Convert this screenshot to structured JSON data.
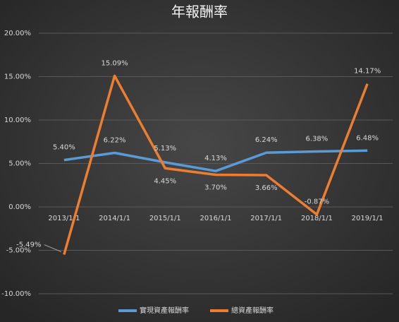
{
  "chart_data": {
    "type": "line",
    "title": "年報酬率",
    "categories": [
      "2013/1/1",
      "2014/1/1",
      "2015/1/1",
      "2016/1/1",
      "2017/1/1",
      "2018/1/1",
      "2019/1/1"
    ],
    "series": [
      {
        "name": "實現資產報酬率",
        "color": "#5b9bd5",
        "values": [
          5.4,
          6.22,
          5.13,
          4.13,
          6.24,
          6.38,
          6.48
        ],
        "value_labels": [
          "5.40%",
          "6.22%",
          "5.13%",
          "4.13%",
          "6.24%",
          "6.38%",
          "6.48%"
        ]
      },
      {
        "name": "總資產報酬率",
        "color": "#ed7d31",
        "values": [
          -5.49,
          15.09,
          4.45,
          3.7,
          3.66,
          -0.87,
          14.17
        ],
        "value_labels": [
          "-5.49%",
          "15.09%",
          "4.45%",
          "3.70%",
          "3.66%",
          "-0.87%",
          "14.17%"
        ]
      }
    ],
    "ylim": [
      -10,
      20
    ],
    "yticks": [
      {
        "value": -10,
        "label": "-10.00%"
      },
      {
        "value": -5,
        "label": "-5.00%"
      },
      {
        "value": 0,
        "label": "0.00%"
      },
      {
        "value": 5,
        "label": "5.00%"
      },
      {
        "value": 10,
        "label": "10.00%"
      },
      {
        "value": 15,
        "label": "15.00%"
      },
      {
        "value": 20,
        "label": "20.00%"
      }
    ],
    "grid": true,
    "legend": "bottom"
  }
}
